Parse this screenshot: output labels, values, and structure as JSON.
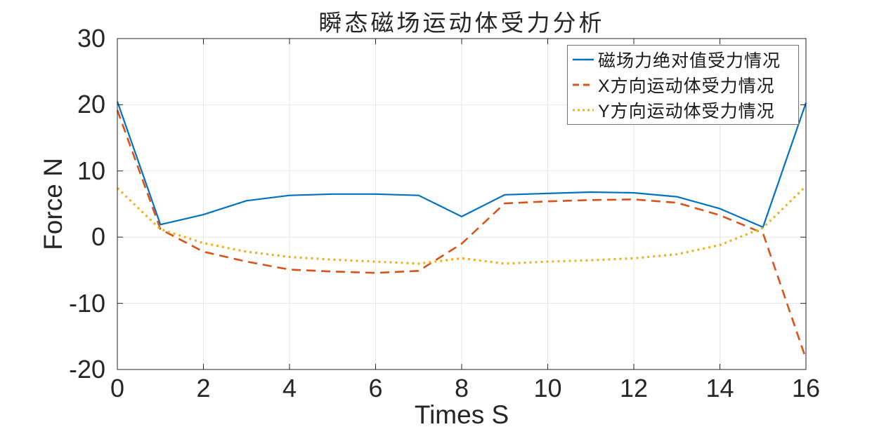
{
  "figure": {
    "title": "瞬态磁场运动体受力分析",
    "xlabel": "Times S",
    "ylabel": "Force N"
  },
  "chart_data": {
    "type": "line",
    "title": "瞬态磁场运动体受力分析",
    "xlabel": "Times S",
    "ylabel": "Force N",
    "xlim": [
      0,
      16
    ],
    "ylim": [
      -20,
      30
    ],
    "x_ticks": [
      0,
      2,
      4,
      6,
      8,
      10,
      12,
      14,
      16
    ],
    "y_ticks": [
      -20,
      -10,
      0,
      10,
      20,
      30
    ],
    "grid": true,
    "legend_position": "top-right-inside",
    "x": [
      0,
      1,
      2,
      3,
      4,
      5,
      6,
      7,
      8,
      9,
      10,
      11,
      12,
      13,
      14,
      15,
      16
    ],
    "series": [
      {
        "name": "磁场力绝对值受力情况",
        "color": "#0072BD",
        "style": "solid",
        "values": [
          20.5,
          1.9,
          3.4,
          5.5,
          6.3,
          6.5,
          6.5,
          6.3,
          3.1,
          6.4,
          6.6,
          6.8,
          6.7,
          6.1,
          4.3,
          1.5,
          20.3
        ]
      },
      {
        "name": "X方向运动体受力情况",
        "color": "#D95319",
        "style": "dashed",
        "values": [
          19.2,
          1.2,
          -2.2,
          -3.7,
          -4.9,
          -5.2,
          -5.4,
          -5.1,
          -1.0,
          5.1,
          5.4,
          5.6,
          5.7,
          5.2,
          3.3,
          0.6,
          -18.4
        ]
      },
      {
        "name": "Y方向运动体受力情况",
        "color": "#EDB120",
        "style": "dotted",
        "values": [
          7.4,
          1.2,
          -0.9,
          -2.2,
          -3.0,
          -3.4,
          -3.7,
          -4.0,
          -3.2,
          -4.0,
          -3.7,
          -3.5,
          -3.2,
          -2.6,
          -1.2,
          1.4,
          7.7
        ]
      }
    ],
    "colors": {
      "axis": "#262626",
      "grid": "#E7E7E7",
      "background": "#FFFFFF"
    }
  }
}
